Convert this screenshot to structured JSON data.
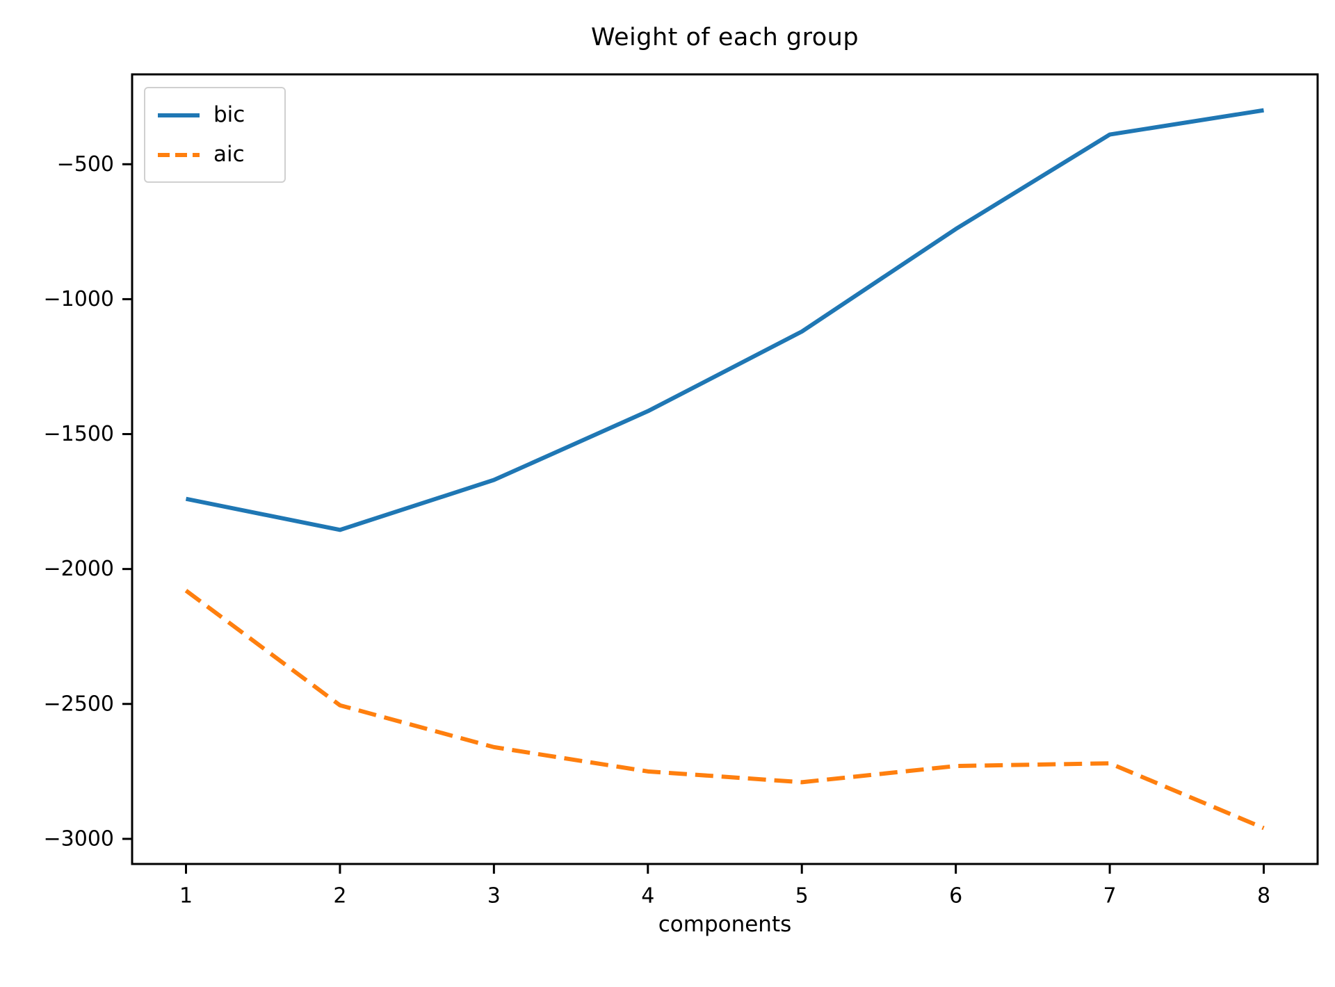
{
  "chart_data": {
    "type": "line",
    "title": "Weight of each group",
    "xlabel": "components",
    "ylabel": "",
    "x": [
      1,
      2,
      3,
      4,
      5,
      6,
      7,
      8
    ],
    "series": [
      {
        "name": "bic",
        "color": "#1f77b4",
        "line_style": "solid",
        "values": [
          -1740,
          -1855,
          -1670,
          -1415,
          -1120,
          -740,
          -390,
          -300
        ]
      },
      {
        "name": "aic",
        "color": "#ff7f0e",
        "line_style": "dashed",
        "values": [
          -2080,
          -2505,
          -2660,
          -2750,
          -2790,
          -2730,
          -2720,
          -2960
        ]
      }
    ],
    "xlim": [
      0.65,
      8.35
    ],
    "ylim": [
      -3093,
      -167
    ],
    "xticks": [
      {
        "value": 1,
        "label": "1"
      },
      {
        "value": 2,
        "label": "2"
      },
      {
        "value": 3,
        "label": "3"
      },
      {
        "value": 4,
        "label": "4"
      },
      {
        "value": 5,
        "label": "5"
      },
      {
        "value": 6,
        "label": "6"
      },
      {
        "value": 7,
        "label": "7"
      },
      {
        "value": 8,
        "label": "8"
      }
    ],
    "yticks": [
      {
        "value": -500,
        "label": "−500"
      },
      {
        "value": -1000,
        "label": "−1000"
      },
      {
        "value": -1500,
        "label": "−1500"
      },
      {
        "value": -2000,
        "label": "−2000"
      },
      {
        "value": -2500,
        "label": "−2500"
      },
      {
        "value": -3000,
        "label": "−3000"
      }
    ],
    "legend": {
      "position": "upper-left",
      "entries": [
        "bic",
        "aic"
      ]
    },
    "grid": false,
    "axis_color": "#000000",
    "background_color": "#ffffff"
  }
}
